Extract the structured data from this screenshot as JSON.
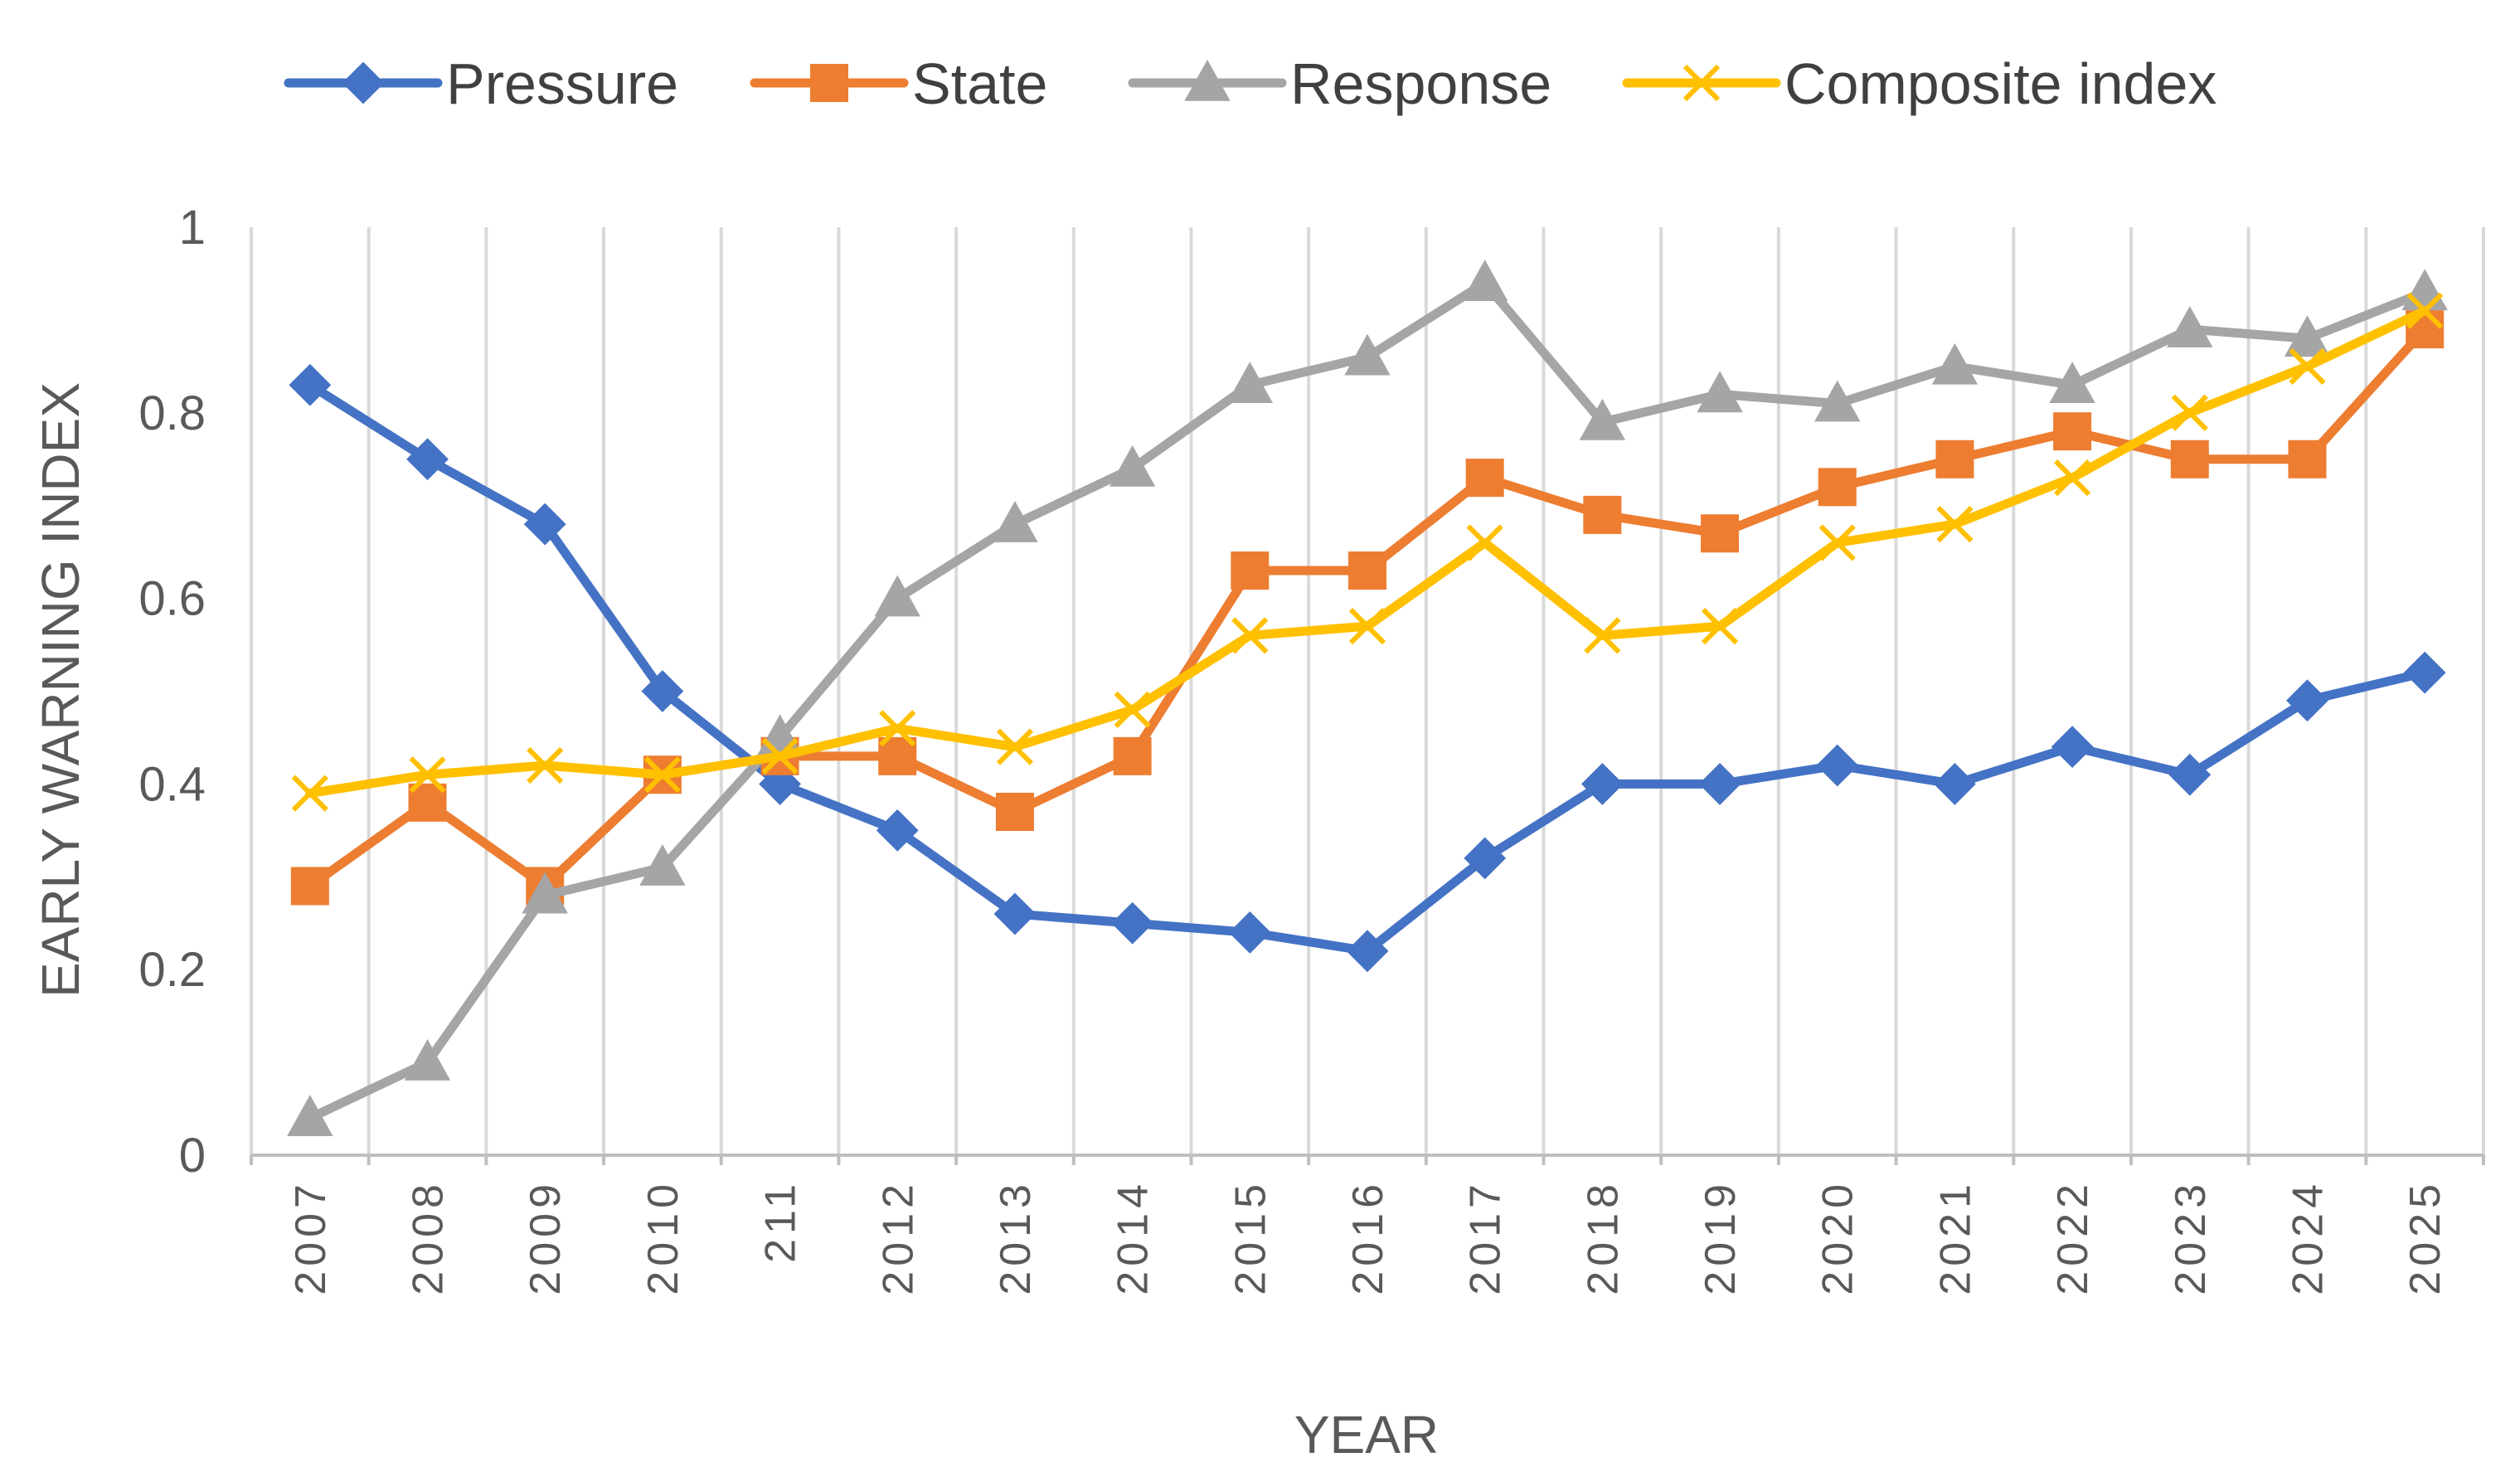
{
  "chart_data": {
    "type": "line",
    "title": "",
    "xlabel": "YEAR",
    "ylabel": "EARLY  WARNING INDEX",
    "ylim": [
      0,
      1
    ],
    "yticks": [
      0,
      0.2,
      0.4,
      0.6,
      0.8,
      1
    ],
    "ytick_labels": [
      "0",
      "0.2",
      "0.4",
      "0.6",
      "0.8",
      "1"
    ],
    "grid": "vertical",
    "legend_position": "top",
    "categories": [
      "2007",
      "2008",
      "2009",
      "2010",
      "211",
      "2012",
      "2013",
      "2014",
      "2015",
      "2016",
      "2017",
      "2018",
      "2019",
      "2020",
      "2021",
      "2022",
      "2023",
      "2024",
      "2025"
    ],
    "series": [
      {
        "name": "Pressure",
        "color": "#4472C4",
        "marker": "diamond",
        "values": [
          0.83,
          0.75,
          0.68,
          0.5,
          0.4,
          0.35,
          0.26,
          0.25,
          0.24,
          0.22,
          0.32,
          0.4,
          0.4,
          0.42,
          0.4,
          0.44,
          0.41,
          0.49,
          0.52
        ]
      },
      {
        "name": "State",
        "color": "#ED7D31",
        "marker": "square",
        "values": [
          0.29,
          0.38,
          0.29,
          0.41,
          0.43,
          0.43,
          0.37,
          0.43,
          0.63,
          0.63,
          0.73,
          0.69,
          0.67,
          0.72,
          0.75,
          0.78,
          0.75,
          0.75,
          0.89
        ]
      },
      {
        "name": "Response",
        "color": "#A5A5A5",
        "marker": "triangle",
        "values": [
          0.04,
          0.1,
          0.28,
          0.31,
          0.45,
          0.6,
          0.68,
          0.74,
          0.83,
          0.86,
          0.94,
          0.79,
          0.82,
          0.81,
          0.85,
          0.83,
          0.89,
          0.88,
          0.93
        ]
      },
      {
        "name": "Composite index",
        "color": "#FFC000",
        "marker": "x",
        "values": [
          0.39,
          0.41,
          0.42,
          0.41,
          0.43,
          0.46,
          0.44,
          0.48,
          0.56,
          0.57,
          0.66,
          0.56,
          0.57,
          0.66,
          0.68,
          0.73,
          0.8,
          0.85,
          0.91
        ]
      }
    ]
  }
}
